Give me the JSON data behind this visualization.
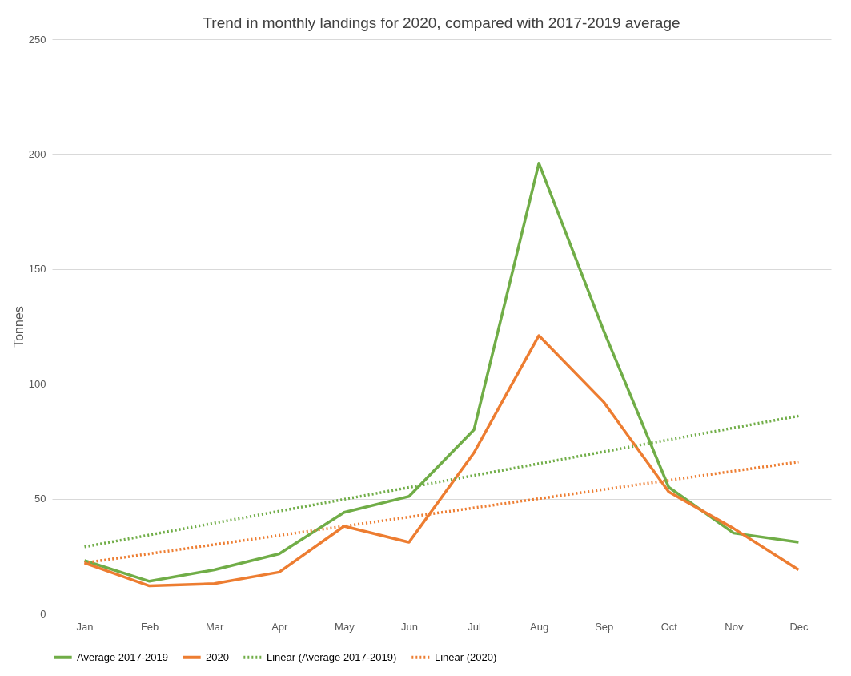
{
  "chart_data": {
    "type": "line",
    "title": "Trend in monthly landings for 2020, compared with 2017-2019 average",
    "ylabel": "Tonnes",
    "categories": [
      "Jan",
      "Feb",
      "Mar",
      "Apr",
      "May",
      "Jun",
      "Jul",
      "Aug",
      "Sep",
      "Oct",
      "Nov",
      "Dec"
    ],
    "series": [
      {
        "name": "Average 2017-2019",
        "color": "#70ad47",
        "values": [
          23,
          14,
          19,
          26,
          44,
          51,
          80,
          196,
          123,
          55,
          35,
          31
        ]
      },
      {
        "name": "2020",
        "color": "#ed7d31",
        "values": [
          22,
          12,
          13,
          18,
          38,
          31,
          70,
          121,
          92,
          53,
          37,
          19
        ]
      },
      {
        "name": "Linear (Average 2017-2019)",
        "color": "#70ad47",
        "type": "line",
        "line_style": "dotted",
        "x": [
          "Jan",
          "Dec"
        ],
        "values": [
          29,
          86
        ]
      },
      {
        "name": "Linear (2020)",
        "color": "#ed7d31",
        "type": "line",
        "line_style": "dotted",
        "x": [
          "Jan",
          "Dec"
        ],
        "values": [
          22,
          66
        ]
      }
    ],
    "ylim": [
      0,
      250
    ],
    "yticks": [
      0,
      50,
      100,
      150,
      200,
      250
    ],
    "grid": "y",
    "legend": "bottom",
    "marker": "none",
    "line_style": "solid"
  }
}
